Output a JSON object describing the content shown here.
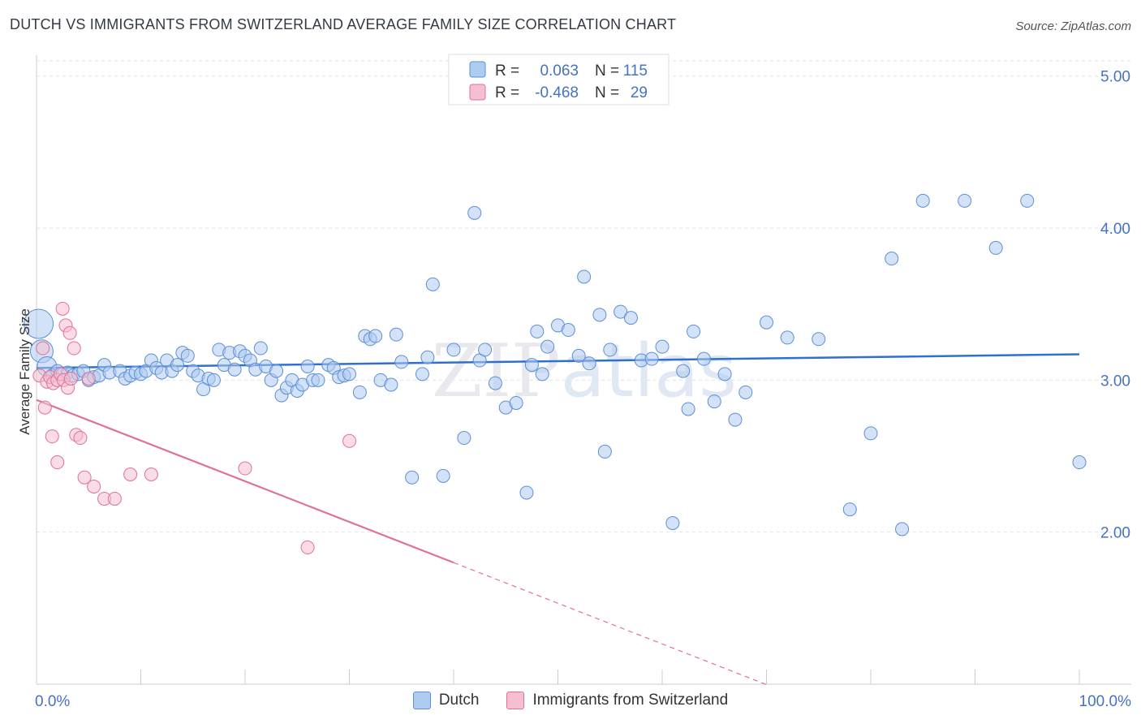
{
  "title": "DUTCH VS IMMIGRANTS FROM SWITZERLAND AVERAGE FAMILY SIZE CORRELATION CHART",
  "source": "Source: ZipAtlas.com",
  "watermark": "ZIPatlas",
  "colors": {
    "blue": "#5b8fd6",
    "blue_fill": "#aecbf0",
    "pink": "#e0709a",
    "pink_fill": "#f6bfd0",
    "axis_label": "#4472c4"
  },
  "legend": {
    "rows": [
      {
        "r_label": "R =",
        "r_value": "0.063",
        "n_label": "N =",
        "n_value": "115"
      },
      {
        "r_label": "R =",
        "r_value": "-0.468",
        "n_label": "N =",
        "n_value": "29"
      }
    ]
  },
  "chart_data": {
    "type": "scatter",
    "ylabel": "Average Family Size",
    "xlim": [
      0,
      100
    ],
    "ylim": [
      1,
      5.1
    ],
    "x_tick_labels": [
      "0.0%",
      "100.0%"
    ],
    "y_ticks": [
      {
        "value": 2,
        "label": "2.00"
      },
      {
        "value": 3,
        "label": "3.00"
      },
      {
        "value": 4,
        "label": "4.00"
      },
      {
        "value": 5,
        "label": "5.00"
      }
    ],
    "grid": true,
    "legend_position": "top-center",
    "series": [
      {
        "name": "Dutch",
        "color": "#5b8fd6",
        "trend": {
          "x0": 0,
          "y0": 3.08,
          "x1": 100,
          "y1": 3.17
        },
        "points": [
          [
            0.2,
            3.37
          ],
          [
            0.5,
            3.19
          ],
          [
            1,
            3.09
          ],
          [
            1.5,
            3.03
          ],
          [
            2,
            3.06
          ],
          [
            2.5,
            3.04
          ],
          [
            3,
            3.05
          ],
          [
            3.5,
            3.03
          ],
          [
            4,
            3.04
          ],
          [
            4.5,
            3.06
          ],
          [
            5,
            3.0
          ],
          [
            5.5,
            3.02
          ],
          [
            6,
            3.03
          ],
          [
            6.5,
            3.1
          ],
          [
            7,
            3.05
          ],
          [
            8,
            3.06
          ],
          [
            8.5,
            3.01
          ],
          [
            9,
            3.03
          ],
          [
            9.5,
            3.05
          ],
          [
            10,
            3.04
          ],
          [
            10.5,
            3.06
          ],
          [
            11,
            3.13
          ],
          [
            11.5,
            3.08
          ],
          [
            12,
            3.05
          ],
          [
            12.5,
            3.13
          ],
          [
            13,
            3.06
          ],
          [
            13.5,
            3.1
          ],
          [
            14,
            3.18
          ],
          [
            14.5,
            3.16
          ],
          [
            15,
            3.06
          ],
          [
            15.5,
            3.03
          ],
          [
            16,
            2.94
          ],
          [
            16.5,
            3.01
          ],
          [
            17,
            3.0
          ],
          [
            17.5,
            3.2
          ],
          [
            18,
            3.1
          ],
          [
            18.5,
            3.18
          ],
          [
            19,
            3.07
          ],
          [
            19.5,
            3.19
          ],
          [
            20,
            3.16
          ],
          [
            20.5,
            3.13
          ],
          [
            21,
            3.07
          ],
          [
            21.5,
            3.21
          ],
          [
            22,
            3.09
          ],
          [
            22.5,
            3.0
          ],
          [
            23,
            3.06
          ],
          [
            23.5,
            2.9
          ],
          [
            24,
            2.95
          ],
          [
            24.5,
            3.0
          ],
          [
            25,
            2.93
          ],
          [
            25.5,
            2.97
          ],
          [
            26,
            3.09
          ],
          [
            26.5,
            3.0
          ],
          [
            27,
            3.0
          ],
          [
            28,
            3.1
          ],
          [
            28.5,
            3.08
          ],
          [
            29,
            3.02
          ],
          [
            29.5,
            3.03
          ],
          [
            30,
            3.04
          ],
          [
            31,
            2.92
          ],
          [
            31.5,
            3.29
          ],
          [
            32,
            3.27
          ],
          [
            32.5,
            3.29
          ],
          [
            33,
            3.0
          ],
          [
            34,
            2.97
          ],
          [
            34.5,
            3.3
          ],
          [
            35,
            3.12
          ],
          [
            36,
            2.36
          ],
          [
            37,
            3.04
          ],
          [
            37.5,
            3.15
          ],
          [
            38,
            3.63
          ],
          [
            39,
            2.37
          ],
          [
            40,
            3.2
          ],
          [
            41,
            2.62
          ],
          [
            42,
            4.1
          ],
          [
            42.5,
            3.13
          ],
          [
            43,
            3.2
          ],
          [
            44,
            2.98
          ],
          [
            45,
            2.82
          ],
          [
            46,
            2.85
          ],
          [
            47,
            2.26
          ],
          [
            47.5,
            3.1
          ],
          [
            48,
            3.32
          ],
          [
            48.5,
            3.04
          ],
          [
            49,
            3.22
          ],
          [
            50,
            3.36
          ],
          [
            51,
            3.33
          ],
          [
            52,
            3.16
          ],
          [
            52.5,
            3.68
          ],
          [
            53,
            3.11
          ],
          [
            54,
            3.43
          ],
          [
            54.5,
            2.53
          ],
          [
            55,
            3.2
          ],
          [
            56,
            3.45
          ],
          [
            57,
            3.41
          ],
          [
            58,
            3.13
          ],
          [
            59,
            3.14
          ],
          [
            60,
            3.22
          ],
          [
            61,
            2.06
          ],
          [
            62,
            3.06
          ],
          [
            62.5,
            2.81
          ],
          [
            63,
            3.32
          ],
          [
            64,
            3.14
          ],
          [
            65,
            2.86
          ],
          [
            66,
            3.04
          ],
          [
            67,
            2.74
          ],
          [
            68,
            2.92
          ],
          [
            70,
            3.38
          ],
          [
            72,
            3.28
          ],
          [
            75,
            3.27
          ],
          [
            78,
            2.15
          ],
          [
            80,
            2.65
          ],
          [
            82,
            3.8
          ],
          [
            83,
            2.02
          ],
          [
            85,
            4.18
          ],
          [
            89,
            4.18
          ],
          [
            92,
            3.87
          ],
          [
            95,
            4.18
          ],
          [
            100,
            2.46
          ]
        ]
      },
      {
        "name": "Immigrants from Switzerland",
        "color": "#e0709a",
        "trend": {
          "x0": 0,
          "y0": 2.87,
          "x1": 40,
          "y1": 1.8,
          "dash_to_x": 70
        },
        "points": [
          [
            0.3,
            3.03
          ],
          [
            0.6,
            3.21
          ],
          [
            1,
            2.99
          ],
          [
            1.3,
            3.02
          ],
          [
            1.6,
            2.98
          ],
          [
            2,
            3.0
          ],
          [
            2.3,
            3.04
          ],
          [
            2.6,
            3.0
          ],
          [
            3,
            2.95
          ],
          [
            3.3,
            3.01
          ],
          [
            0.8,
            2.82
          ],
          [
            1.5,
            2.63
          ],
          [
            2,
            2.46
          ],
          [
            2.5,
            3.47
          ],
          [
            2.8,
            3.36
          ],
          [
            3.2,
            3.31
          ],
          [
            3.6,
            3.21
          ],
          [
            3.8,
            2.64
          ],
          [
            4.2,
            2.62
          ],
          [
            4.6,
            2.36
          ],
          [
            5,
            3.01
          ],
          [
            5.5,
            2.3
          ],
          [
            6.5,
            2.22
          ],
          [
            7.5,
            2.22
          ],
          [
            9,
            2.38
          ],
          [
            11,
            2.38
          ],
          [
            20,
            2.42
          ],
          [
            26,
            1.9
          ],
          [
            30,
            2.6
          ]
        ]
      }
    ]
  }
}
